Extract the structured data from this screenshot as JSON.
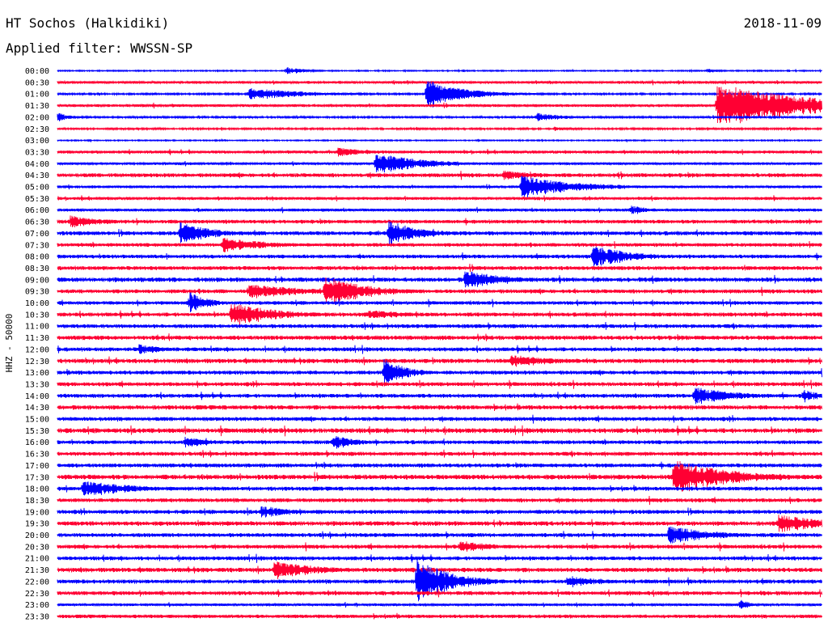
{
  "header": {
    "station": "HT Sochos (Halkidiki)",
    "date": "2018-11-09",
    "filter": "Applied filter: WWSSN-SP"
  },
  "chart_data": {
    "type": "line",
    "title": "HT Sochos (Halkidiki)",
    "date": "2018-11-09",
    "filter": "WWSSN-SP",
    "ylabel": "HHZ - 50000",
    "row_labels": [
      "00:00",
      "00:30",
      "01:00",
      "01:30",
      "02:00",
      "02:30",
      "03:00",
      "03:30",
      "04:00",
      "04:30",
      "05:00",
      "05:30",
      "06:00",
      "06:30",
      "07:00",
      "07:30",
      "08:00",
      "08:30",
      "09:00",
      "09:30",
      "10:00",
      "10:30",
      "11:00",
      "11:30",
      "12:00",
      "12:30",
      "13:00",
      "13:30",
      "14:00",
      "14:30",
      "15:00",
      "15:30",
      "16:00",
      "16:30",
      "17:00",
      "17:30",
      "18:00",
      "18:30",
      "19:00",
      "19:30",
      "20:00",
      "20:30",
      "21:00",
      "21:30",
      "22:00",
      "22:30",
      "23:00",
      "23:30"
    ],
    "row_minutes": 30,
    "trace_colors": [
      "#0000ff",
      "#ff0033"
    ],
    "noise_level": [
      0.6,
      1.3,
      0.9,
      1.4,
      1.0,
      0.9,
      0.6,
      1.5,
      1.3,
      2.0,
      1.3,
      1.5,
      1.5,
      1.9,
      2.0,
      1.8,
      1.9,
      2.0,
      2.2,
      2.0,
      1.8,
      2.0,
      2.0,
      2.2,
      2.0,
      2.2,
      2.0,
      2.0,
      2.0,
      2.2,
      2.0,
      2.4,
      1.9,
      2.0,
      2.0,
      2.4,
      2.0,
      2.0,
      2.0,
      2.2,
      2.0,
      2.0,
      2.0,
      2.2,
      2.0,
      2.0,
      1.3,
      1.8
    ],
    "events": [
      {
        "row": 0,
        "minute": 9.0,
        "amplitude": 5,
        "duration": 0.8
      },
      {
        "row": 0,
        "minute": 25.5,
        "amplitude": 3,
        "duration": 0.5
      },
      {
        "row": 2,
        "minute": 7.5,
        "amplitude": 8,
        "duration": 2.5
      },
      {
        "row": 2,
        "minute": 14.5,
        "amplitude": 18,
        "duration": 1.5
      },
      {
        "row": 2,
        "minute": 15.2,
        "amplitude": 10,
        "duration": 1.8
      },
      {
        "row": 3,
        "minute": 4.5,
        "amplitude": 3,
        "duration": 0.5
      },
      {
        "row": 3,
        "minute": 25.9,
        "amplitude": 28,
        "duration": 4.0
      },
      {
        "row": 4,
        "minute": 0.0,
        "amplitude": 6,
        "duration": 0.6
      },
      {
        "row": 4,
        "minute": 18.8,
        "amplitude": 6,
        "duration": 1.2
      },
      {
        "row": 5,
        "minute": 19.5,
        "amplitude": 3,
        "duration": 0.8
      },
      {
        "row": 7,
        "minute": 11.0,
        "amplitude": 6,
        "duration": 1.5
      },
      {
        "row": 8,
        "minute": 12.5,
        "amplitude": 14,
        "duration": 2.0
      },
      {
        "row": 9,
        "minute": 17.5,
        "amplitude": 6,
        "duration": 2.0
      },
      {
        "row": 10,
        "minute": 18.2,
        "amplitude": 14,
        "duration": 2.5
      },
      {
        "row": 12,
        "minute": 22.5,
        "amplitude": 6,
        "duration": 1.0
      },
      {
        "row": 13,
        "minute": 0.5,
        "amplitude": 8,
        "duration": 1.5
      },
      {
        "row": 14,
        "minute": 4.8,
        "amplitude": 14,
        "duration": 1.5
      },
      {
        "row": 14,
        "minute": 13.0,
        "amplitude": 16,
        "duration": 1.5
      },
      {
        "row": 15,
        "minute": 6.5,
        "amplitude": 10,
        "duration": 2.0
      },
      {
        "row": 16,
        "minute": 21.0,
        "amplitude": 14,
        "duration": 1.8
      },
      {
        "row": 18,
        "minute": 16.0,
        "amplitude": 12,
        "duration": 1.8
      },
      {
        "row": 19,
        "minute": 7.5,
        "amplitude": 10,
        "duration": 2.5
      },
      {
        "row": 19,
        "minute": 10.5,
        "amplitude": 20,
        "duration": 1.8
      },
      {
        "row": 20,
        "minute": 5.2,
        "amplitude": 14,
        "duration": 0.8
      },
      {
        "row": 21,
        "minute": 6.8,
        "amplitude": 16,
        "duration": 2.0
      },
      {
        "row": 21,
        "minute": 12.2,
        "amplitude": 6,
        "duration": 2.0
      },
      {
        "row": 24,
        "minute": 3.2,
        "amplitude": 8,
        "duration": 1.0
      },
      {
        "row": 25,
        "minute": 17.8,
        "amplitude": 8,
        "duration": 2.0
      },
      {
        "row": 26,
        "minute": 12.8,
        "amplitude": 18,
        "duration": 1.0
      },
      {
        "row": 28,
        "minute": 25.0,
        "amplitude": 12,
        "duration": 1.8
      },
      {
        "row": 28,
        "minute": 29.3,
        "amplitude": 8,
        "duration": 0.8
      },
      {
        "row": 32,
        "minute": 5.0,
        "amplitude": 8,
        "duration": 1.2
      },
      {
        "row": 32,
        "minute": 10.8,
        "amplitude": 10,
        "duration": 1.0
      },
      {
        "row": 35,
        "minute": 24.2,
        "amplitude": 22,
        "duration": 2.5
      },
      {
        "row": 36,
        "minute": 1.0,
        "amplitude": 10,
        "duration": 2.5
      },
      {
        "row": 38,
        "minute": 8.0,
        "amplitude": 8,
        "duration": 1.5
      },
      {
        "row": 39,
        "minute": 28.3,
        "amplitude": 12,
        "duration": 2.0
      },
      {
        "row": 40,
        "minute": 24.0,
        "amplitude": 12,
        "duration": 2.0
      },
      {
        "row": 41,
        "minute": 15.8,
        "amplitude": 8,
        "duration": 1.5
      },
      {
        "row": 43,
        "minute": 8.5,
        "amplitude": 12,
        "duration": 2.0
      },
      {
        "row": 44,
        "minute": 14.1,
        "amplitude": 30,
        "duration": 1.5
      },
      {
        "row": 44,
        "minute": 20.0,
        "amplitude": 8,
        "duration": 1.5
      },
      {
        "row": 46,
        "minute": 26.8,
        "amplitude": 7,
        "duration": 0.5
      }
    ]
  }
}
